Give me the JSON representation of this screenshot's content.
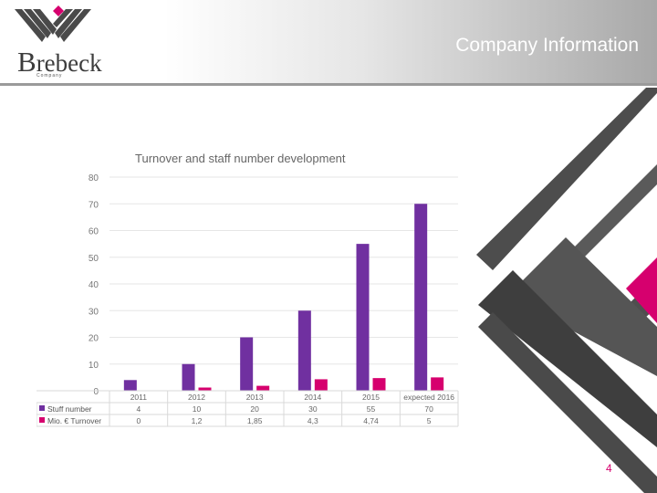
{
  "header": {
    "title": "Company Information",
    "logo_text_initial": "B",
    "logo_text_rest": "rebeck",
    "logo_subtext": "Company",
    "colors": {
      "pink": "#d6006e",
      "dark_gray": "#444444",
      "purple": "#7030a0"
    }
  },
  "page_number": "4",
  "chart_data": {
    "type": "bar",
    "title": "Turnover and staff number development",
    "categories": [
      "2011",
      "2012",
      "2013",
      "2014",
      "2015",
      "expected 2016"
    ],
    "series": [
      {
        "name": "Stuff number",
        "values": [
          4,
          10,
          20,
          30,
          55,
          70
        ],
        "labels": [
          "4",
          "10",
          "20",
          "30",
          "55",
          "70"
        ],
        "color": "#7030a0"
      },
      {
        "name": "Mio. € Turnover",
        "values": [
          0,
          1.2,
          1.85,
          4.3,
          4.74,
          5
        ],
        "labels": [
          "0",
          "1,2",
          "1,85",
          "4,3",
          "4,74",
          "5"
        ],
        "color": "#d6006e"
      }
    ],
    "ylim": [
      0,
      80
    ],
    "yticks": [
      0,
      10,
      20,
      30,
      40,
      50,
      60,
      70,
      80
    ],
    "grid": true,
    "legend": "data-table",
    "xlabel": "",
    "ylabel": ""
  }
}
